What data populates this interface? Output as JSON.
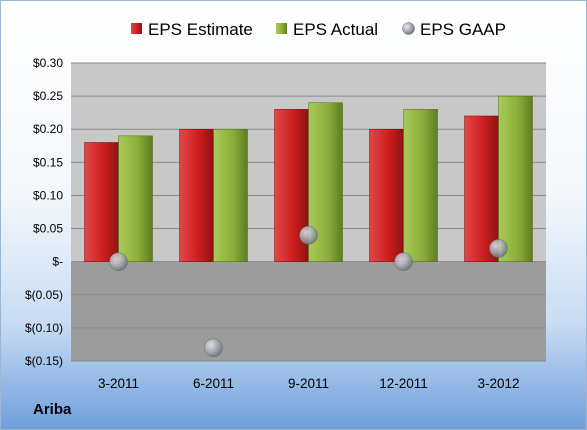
{
  "company_label": "Ariba",
  "colors": {
    "estimate": "#cc2222",
    "actual": "#8fb33c",
    "gaap": "#9aa0a8",
    "plot_bg_upper": "#c8c8c8",
    "plot_bg_lower": "#9c9c9c"
  },
  "chart_data": {
    "type": "bar",
    "categories": [
      "3-2011",
      "6-2011",
      "9-2011",
      "12-2011",
      "3-2012"
    ],
    "series": [
      {
        "name": "EPS Estimate",
        "kind": "bar",
        "values": [
          0.18,
          0.2,
          0.23,
          0.2,
          0.22
        ]
      },
      {
        "name": "EPS Actual",
        "kind": "bar",
        "values": [
          0.19,
          0.2,
          0.24,
          0.23,
          0.25
        ]
      },
      {
        "name": "EPS GAAP",
        "kind": "marker",
        "values": [
          0.0,
          -0.13,
          0.04,
          0.0,
          0.02
        ]
      }
    ],
    "ylim": [
      -0.15,
      0.3
    ],
    "yticks": [
      0.3,
      0.25,
      0.2,
      0.15,
      0.1,
      0.05,
      0.0,
      -0.05,
      -0.1,
      -0.15
    ],
    "ytick_labels": [
      "$0.30",
      "$0.25",
      "$0.20",
      "$0.15",
      "$0.10",
      "$0.05",
      "$-",
      "$(0.05)",
      "$(0.10)",
      "$(0.15)"
    ],
    "grid": true,
    "legend": "top-center"
  }
}
